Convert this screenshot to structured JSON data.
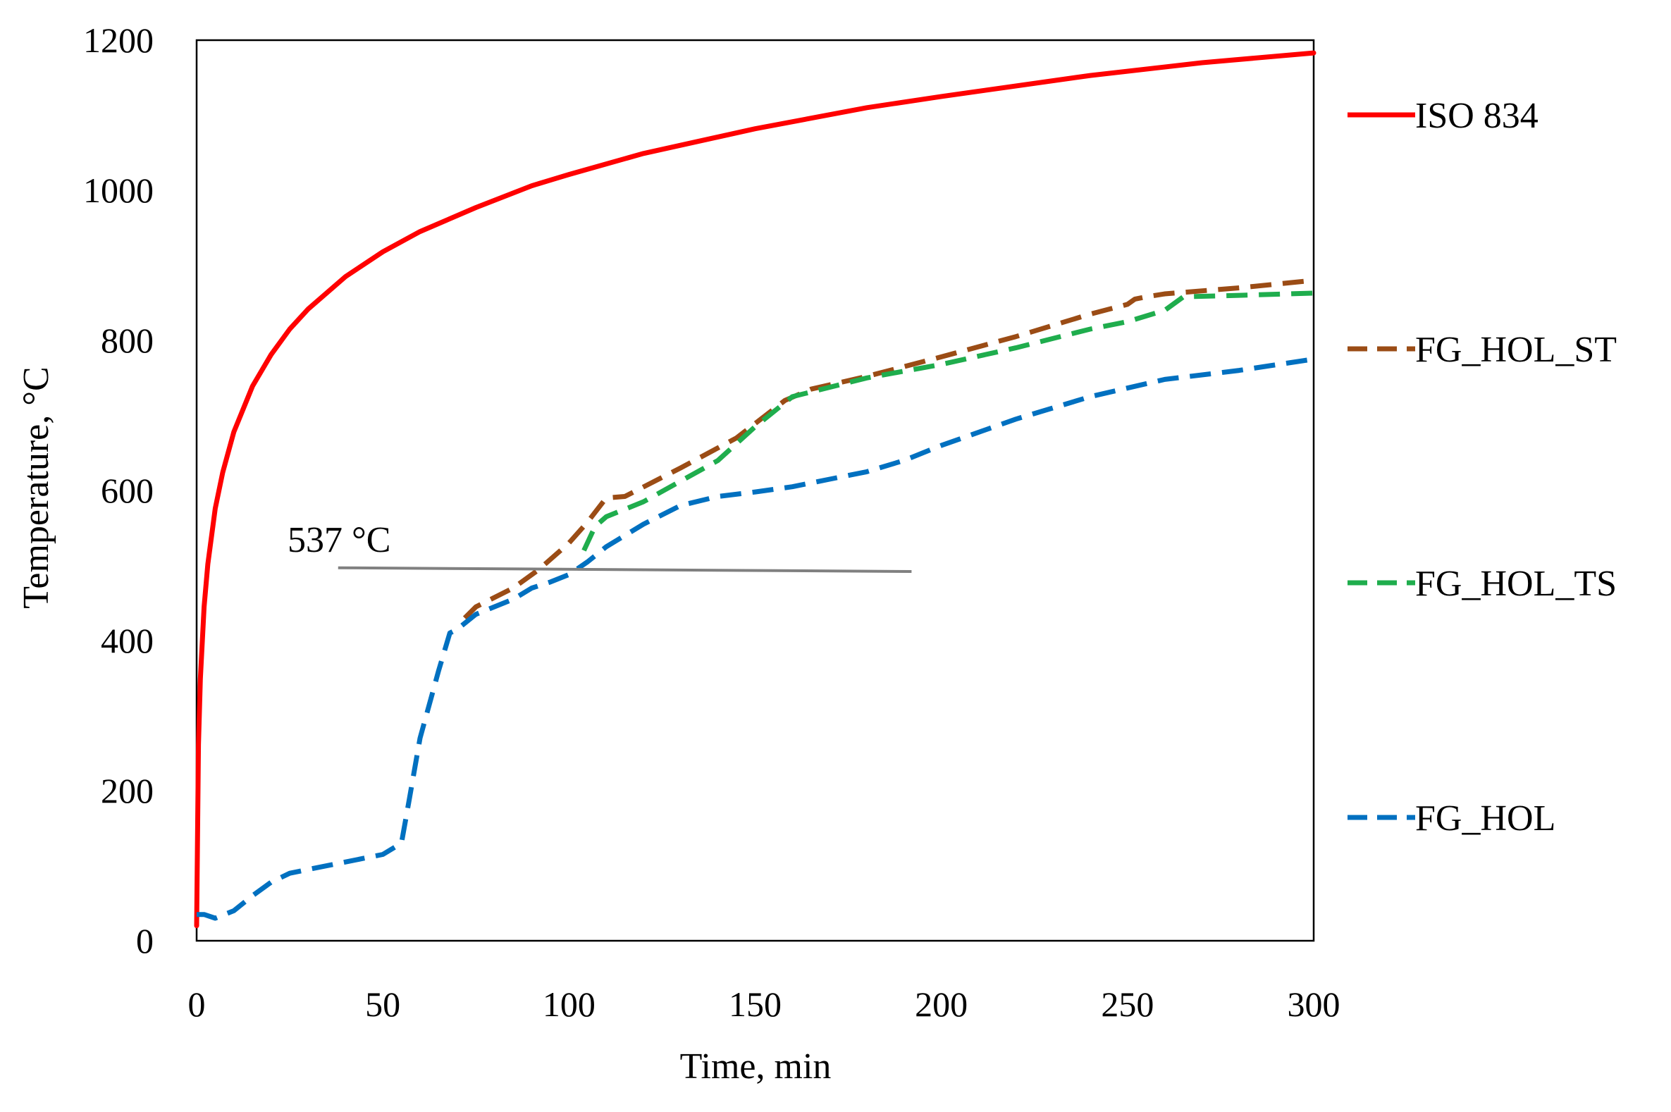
{
  "chart_data": {
    "type": "line",
    "title": "",
    "xlabel": "Time, min",
    "ylabel": "Temperature, °C",
    "xlim": [
      0,
      300
    ],
    "ylim": [
      0,
      1200
    ],
    "xticks": [
      0,
      50,
      100,
      150,
      200,
      250,
      300
    ],
    "yticks": [
      0,
      200,
      400,
      600,
      800,
      1000,
      1200
    ],
    "grid": false,
    "legend_position": "right",
    "annotations": [
      {
        "text": "537 °C",
        "x": 38,
        "y": 497,
        "x_end": 192,
        "y_end": 492,
        "color": "#808080"
      }
    ],
    "series": [
      {
        "name": "ISO 834",
        "style": "solid",
        "color": "#ff0000",
        "x": [
          0,
          0.5,
          1,
          2,
          3,
          5,
          7,
          10,
          15,
          20,
          25,
          30,
          40,
          50,
          60,
          75,
          90,
          100,
          120,
          150,
          180,
          200,
          240,
          270,
          300
        ],
        "y": [
          20,
          261,
          349,
          445,
          502,
          576,
          624,
          678,
          739,
          781,
          815,
          842,
          885,
          918,
          945,
          977,
          1006,
          1021,
          1049,
          1082,
          1110,
          1125,
          1153,
          1170,
          1183
        ]
      },
      {
        "name": "FG_HOL_ST",
        "style": "dashed",
        "color": "#9b4c15",
        "x": [
          72,
          75,
          85,
          92,
          100,
          105,
          110,
          115,
          130,
          145,
          158,
          165,
          180,
          200,
          220,
          240,
          250,
          252,
          255,
          260,
          280,
          300
        ],
        "y": [
          430,
          445,
          470,
          495,
          530,
          558,
          590,
          592,
          630,
          670,
          720,
          735,
          752,
          778,
          805,
          835,
          848,
          855,
          858,
          862,
          870,
          880
        ]
      },
      {
        "name": "FG_HOL_TS",
        "style": "dashed",
        "color": "#1fad4d",
        "x": [
          104,
          107,
          110,
          120,
          140,
          150,
          160,
          180,
          200,
          220,
          240,
          250,
          260,
          265,
          280,
          300
        ],
        "y": [
          520,
          552,
          565,
          585,
          640,
          685,
          725,
          750,
          768,
          790,
          815,
          825,
          840,
          858,
          860,
          863
        ]
      },
      {
        "name": "FG_HOL",
        "style": "dashed",
        "color": "#0070c0",
        "x": [
          0,
          2,
          5,
          10,
          15,
          20,
          25,
          30,
          40,
          50,
          55,
          57,
          60,
          65,
          68,
          70,
          75,
          85,
          90,
          95,
          100,
          105,
          110,
          120,
          130,
          140,
          150,
          160,
          170,
          180,
          190,
          200,
          220,
          240,
          260,
          280,
          300
        ],
        "y": [
          35,
          35,
          30,
          40,
          60,
          78,
          90,
          95,
          105,
          115,
          130,
          185,
          270,
          360,
          410,
          415,
          435,
          455,
          470,
          478,
          488,
          505,
          525,
          555,
          580,
          592,
          598,
          605,
          615,
          625,
          640,
          660,
          695,
          725,
          748,
          760,
          775
        ]
      }
    ]
  }
}
